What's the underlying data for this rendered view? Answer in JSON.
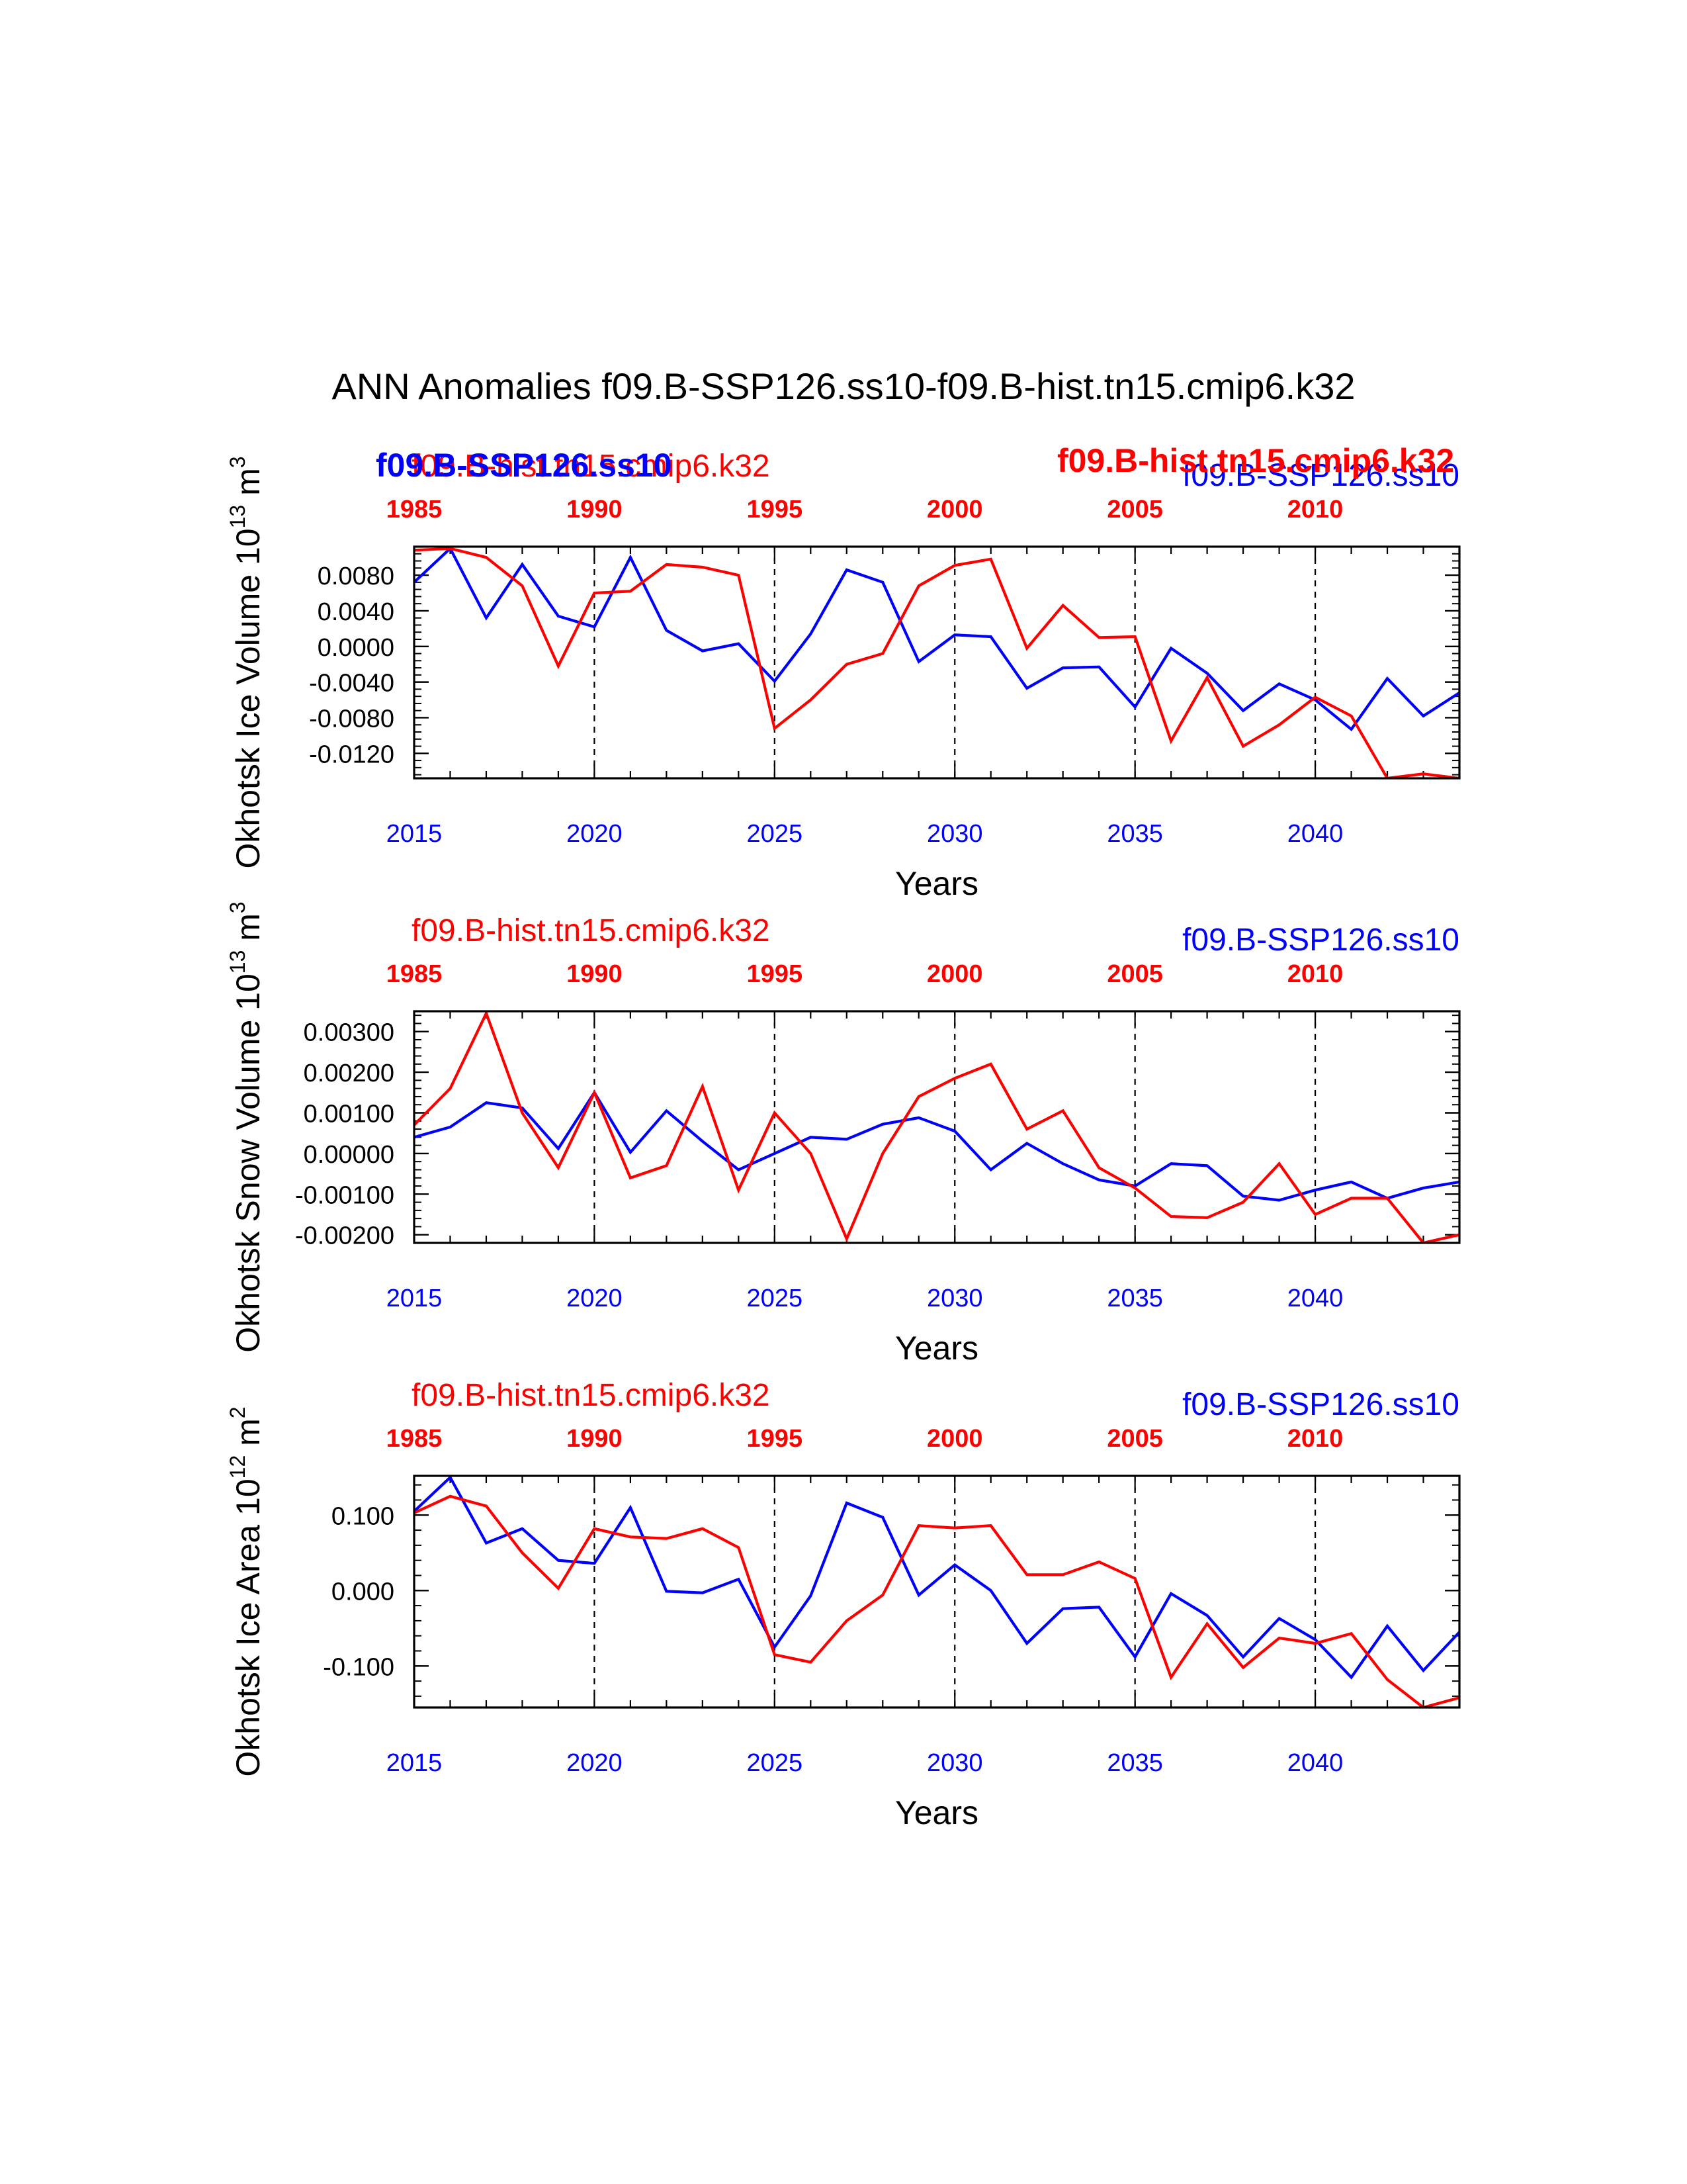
{
  "title": "ANN Anomalies f09.B-SSP126.ss10-f09.B-hist.tn15.cmip6.k32",
  "colors": {
    "ssp": "#0000ff",
    "hist": "#ff0000",
    "axis": "#000000"
  },
  "overlay_labels": {
    "ssp_bold": "f09.B-SSP126.ss10",
    "hist_bold": "f09.B-hist.tn15.cmip6.k32"
  },
  "chart_data": [
    {
      "type": "line",
      "ylabel": "Okhotsk Ice Volume 10",
      "ylabel_exp": "13",
      "ylabel_unit": "m",
      "ylabel_unit_exp": "3",
      "xlabel": "Years",
      "top_left_label": "f09.B-hist.tn15.cmip6.k32",
      "top_right_label": "f09.B-SSP126.ss10",
      "x_bottom_ticks": [
        "2015",
        "2020",
        "2025",
        "2030",
        "2035",
        "2040"
      ],
      "x_top_ticks": [
        "1985",
        "1990",
        "1995",
        "2000",
        "2005",
        "2010"
      ],
      "x": [
        2015,
        2016,
        2017,
        2018,
        2019,
        2020,
        2021,
        2022,
        2023,
        2024,
        2025,
        2026,
        2027,
        2028,
        2029,
        2030,
        2031,
        2032,
        2033,
        2034,
        2035,
        2036,
        2037,
        2038,
        2039,
        2040,
        2041,
        2042,
        2043,
        2044
      ],
      "xlim": [
        2015,
        2044
      ],
      "ylim": [
        -0.0148,
        0.0112
      ],
      "yticks": [
        0.008,
        0.004,
        0.0,
        -0.004,
        -0.008,
        -0.012
      ],
      "ytick_labels": [
        "0.0080",
        "0.0040",
        "0.0000",
        "-0.0040",
        "-0.0080",
        "-0.0120"
      ],
      "series": [
        {
          "name": "f09.B-SSP126.ss10",
          "color": "#0000ff",
          "values": [
            0.0072,
            0.011,
            0.0032,
            0.0092,
            0.0034,
            0.0022,
            0.01,
            0.0018,
            -0.0005,
            0.0003,
            -0.0039,
            0.0014,
            0.0086,
            0.0072,
            -0.0017,
            0.0013,
            0.0011,
            -0.0047,
            -0.0024,
            -0.0023,
            -0.0068,
            -0.0002,
            -0.003,
            -0.0072,
            -0.0042,
            -0.006,
            -0.0093,
            -0.0036,
            -0.0078,
            -0.0052
          ]
        },
        {
          "name": "f09.B-hist.tn15.cmip6.k32",
          "color": "#ff0000",
          "values": [
            0.0108,
            0.011,
            0.01,
            0.0068,
            -0.0022,
            0.006,
            0.0062,
            0.0092,
            0.0089,
            0.008,
            -0.0092,
            -0.006,
            -0.002,
            -0.0008,
            0.0068,
            0.0091,
            0.0098,
            -0.0002,
            0.0046,
            0.001,
            0.0011,
            -0.0106,
            -0.0035,
            -0.0112,
            -0.0088,
            -0.0057,
            -0.0078,
            -0.015,
            -0.0143,
            -0.015
          ]
        }
      ]
    },
    {
      "type": "line",
      "ylabel": "Okhotsk Snow Volume 10",
      "ylabel_exp": "13",
      "ylabel_unit": "m",
      "ylabel_unit_exp": "3",
      "xlabel": "Years",
      "top_left_label": "f09.B-hist.tn15.cmip6.k32",
      "top_right_label": "f09.B-SSP126.ss10",
      "x_bottom_ticks": [
        "2015",
        "2020",
        "2025",
        "2030",
        "2035",
        "2040"
      ],
      "x_top_ticks": [
        "1985",
        "1990",
        "1995",
        "2000",
        "2005",
        "2010"
      ],
      "x": [
        2015,
        2016,
        2017,
        2018,
        2019,
        2020,
        2021,
        2022,
        2023,
        2024,
        2025,
        2026,
        2027,
        2028,
        2029,
        2030,
        2031,
        2032,
        2033,
        2034,
        2035,
        2036,
        2037,
        2038,
        2039,
        2040,
        2041,
        2042,
        2043,
        2044
      ],
      "xlim": [
        2015,
        2044
      ],
      "ylim": [
        -0.0022,
        0.0035
      ],
      "yticks": [
        0.003,
        0.002,
        0.001,
        0.0,
        -0.001,
        -0.002
      ],
      "ytick_labels": [
        "0.00300",
        "0.00200",
        "0.00100",
        "0.00000",
        "-0.00100",
        "-0.00200"
      ],
      "series": [
        {
          "name": "f09.B-SSP126.ss10",
          "color": "#0000ff",
          "values": [
            0.0004,
            0.00065,
            0.00125,
            0.00112,
            0.00012,
            0.0015,
            3e-05,
            0.00105,
            0.0003,
            -0.0004,
            0.0,
            0.0004,
            0.00035,
            0.00072,
            0.00088,
            0.00055,
            -0.0004,
            0.00025,
            -0.00025,
            -0.00065,
            -0.0008,
            -0.00025,
            -0.0003,
            -0.00105,
            -0.00115,
            -0.0009,
            -0.0007,
            -0.0011,
            -0.00085,
            -0.0007
          ]
        },
        {
          "name": "f09.B-hist.tn15.cmip6.k32",
          "color": "#ff0000",
          "values": [
            0.0007,
            0.0016,
            0.00345,
            0.001,
            -0.00035,
            0.0015,
            -0.0006,
            -0.0003,
            0.00165,
            -0.0009,
            0.001,
            0.0,
            -0.0021,
            0.0,
            0.0014,
            0.00185,
            0.0022,
            0.0006,
            0.00105,
            -0.00035,
            -0.00085,
            -0.00155,
            -0.00158,
            -0.0012,
            -0.00025,
            -0.0015,
            -0.0011,
            -0.0011,
            -0.00225,
            -0.002
          ]
        }
      ]
    },
    {
      "type": "line",
      "ylabel": "Okhotsk Ice Area 10",
      "ylabel_exp": "12",
      "ylabel_unit": "m",
      "ylabel_unit_exp": "2",
      "xlabel": "Years",
      "top_left_label": "f09.B-hist.tn15.cmip6.k32",
      "top_right_label": "f09.B-SSP126.ss10",
      "x_bottom_ticks": [
        "2015",
        "2020",
        "2025",
        "2030",
        "2035",
        "2040"
      ],
      "x_top_ticks": [
        "1985",
        "1990",
        "1995",
        "2000",
        "2005",
        "2010"
      ],
      "x": [
        2015,
        2016,
        2017,
        2018,
        2019,
        2020,
        2021,
        2022,
        2023,
        2024,
        2025,
        2026,
        2027,
        2028,
        2029,
        2030,
        2031,
        2032,
        2033,
        2034,
        2035,
        2036,
        2037,
        2038,
        2039,
        2040,
        2041,
        2042,
        2043,
        2044
      ],
      "xlim": [
        2015,
        2044
      ],
      "ylim": [
        -0.155,
        0.152
      ],
      "yticks": [
        0.1,
        0.0,
        -0.1
      ],
      "ytick_labels": [
        "0.100",
        "0.000",
        "-0.100"
      ],
      "series": [
        {
          "name": "f09.B-SSP126.ss10",
          "color": "#0000ff",
          "values": [
            0.105,
            0.15,
            0.063,
            0.082,
            0.04,
            0.036,
            0.11,
            -0.001,
            -0.003,
            0.015,
            -0.075,
            -0.007,
            0.116,
            0.097,
            -0.006,
            0.034,
            0.0,
            -0.07,
            -0.024,
            -0.022,
            -0.088,
            -0.004,
            -0.033,
            -0.088,
            -0.037,
            -0.065,
            -0.115,
            -0.047,
            -0.106,
            -0.055
          ]
        },
        {
          "name": "f09.B-hist.tn15.cmip6.k32",
          "color": "#ff0000",
          "values": [
            0.103,
            0.125,
            0.112,
            0.05,
            0.003,
            0.082,
            0.071,
            0.069,
            0.082,
            0.057,
            -0.085,
            -0.095,
            -0.04,
            -0.006,
            0.086,
            0.083,
            0.086,
            0.021,
            0.021,
            0.038,
            0.016,
            -0.115,
            -0.044,
            -0.102,
            -0.063,
            -0.07,
            -0.057,
            -0.118,
            -0.155,
            -0.142
          ]
        }
      ]
    }
  ]
}
